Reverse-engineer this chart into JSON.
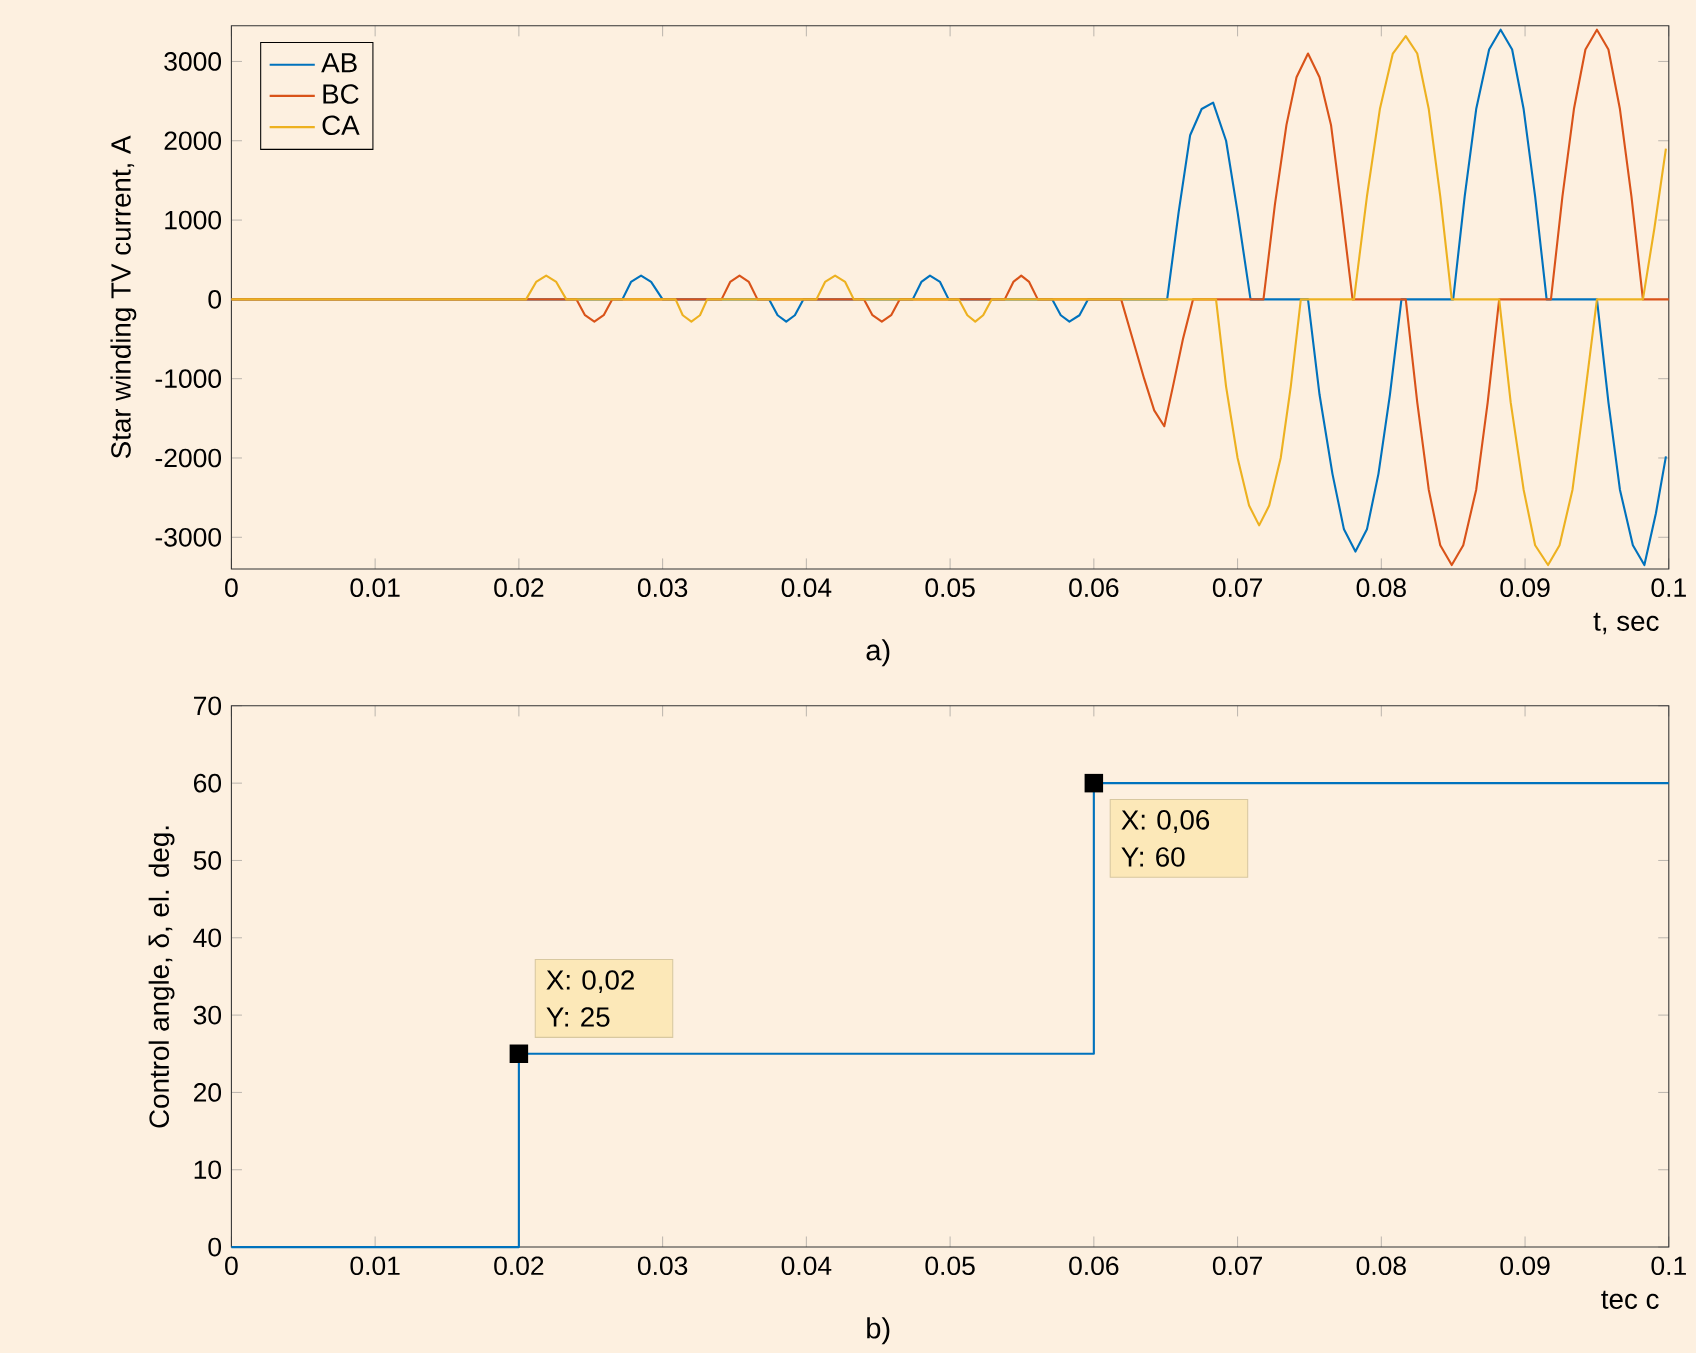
{
  "chart_data": [
    {
      "type": "line",
      "ylabel": "Star winding TV current, A",
      "xlabel": "t, sec",
      "annotations": [
        "a)"
      ],
      "xlim": [
        0,
        0.1
      ],
      "ylim": [
        -3400,
        3450
      ],
      "xticks": [
        0,
        0.01,
        0.02,
        0.03,
        0.04,
        0.05,
        0.06,
        0.07,
        0.08,
        0.09,
        0.1
      ],
      "yticks": [
        -3000,
        -2000,
        -1000,
        0,
        1000,
        2000,
        3000
      ],
      "legend": "top left",
      "series": [
        {
          "name": "AB",
          "color": "#0072bd",
          "x": [
            0,
            0.0272,
            0.0278,
            0.0285,
            0.0292,
            0.03,
            0.0374,
            0.038,
            0.0386,
            0.0392,
            0.0398,
            0.0474,
            0.048,
            0.0486,
            0.0493,
            0.0499,
            0.0571,
            0.0577,
            0.0583,
            0.059,
            0.0596,
            0.0651,
            0.0659,
            0.0667,
            0.0675,
            0.0683,
            0.0692,
            0.07,
            0.0709,
            0.0749,
            0.0757,
            0.0766,
            0.0774,
            0.0782,
            0.079,
            0.0798,
            0.0806,
            0.0814,
            0.085,
            0.0858,
            0.0866,
            0.0875,
            0.0883,
            0.0891,
            0.0899,
            0.0907,
            0.0915,
            0.095,
            0.0958,
            0.0966,
            0.0975,
            0.0983,
            0.0991,
            0.0998
          ],
          "values": [
            0,
            0,
            220,
            300,
            220,
            0,
            0,
            -200,
            -280,
            -200,
            0,
            0,
            220,
            300,
            220,
            0,
            0,
            -200,
            -280,
            -200,
            0,
            0,
            1100,
            2070,
            2400,
            2480,
            2000,
            1100,
            0,
            0,
            -1200,
            -2200,
            -2900,
            -3180,
            -2900,
            -2200,
            -1200,
            0,
            0,
            1300,
            2400,
            3150,
            3400,
            3150,
            2400,
            1300,
            0,
            0,
            -1300,
            -2400,
            -3100,
            -3350,
            -2700,
            -1980
          ]
        },
        {
          "name": "BC",
          "color": "#d95319",
          "x": [
            0,
            0.024,
            0.0246,
            0.02525,
            0.0259,
            0.0265,
            0.0341,
            0.0347,
            0.03535,
            0.036,
            0.0366,
            0.044,
            0.0446,
            0.04525,
            0.0459,
            0.0465,
            0.0538,
            0.0544,
            0.05495,
            0.0555,
            0.0561,
            0.0619,
            0.0627,
            0.0635,
            0.0642,
            0.0649,
            0.0655,
            0.0662,
            0.0669,
            0.0718,
            0.0726,
            0.0734,
            0.0741,
            0.0749,
            0.0757,
            0.0765,
            0.0772,
            0.078,
            0.0817,
            0.0825,
            0.0833,
            0.0841,
            0.0849,
            0.0857,
            0.0866,
            0.0874,
            0.0882,
            0.0918,
            0.0926,
            0.0934,
            0.0942,
            0.095,
            0.0958,
            0.0966,
            0.0974,
            0.0982,
            0.1
          ],
          "values": [
            0,
            0,
            -200,
            -280,
            -200,
            0,
            0,
            220,
            300,
            220,
            0,
            0,
            -200,
            -280,
            -200,
            0,
            0,
            220,
            300,
            220,
            0,
            0,
            -500,
            -1000,
            -1400,
            -1600,
            -1100,
            -500,
            0,
            0,
            1200,
            2200,
            2800,
            3100,
            2800,
            2200,
            1200,
            0,
            0,
            -1300,
            -2400,
            -3100,
            -3350,
            -3100,
            -2400,
            -1300,
            0,
            0,
            1300,
            2400,
            3150,
            3400,
            3150,
            2400,
            1300,
            0,
            0
          ]
        },
        {
          "name": "CA",
          "color": "#edb120",
          "x": [
            0,
            0.0205,
            0.0212,
            0.0219,
            0.0226,
            0.0233,
            0.0309,
            0.0314,
            0.032,
            0.0326,
            0.0331,
            0.0407,
            0.0413,
            0.042,
            0.0427,
            0.0433,
            0.0506,
            0.0512,
            0.05175,
            0.0523,
            0.0529,
            0.0685,
            0.0692,
            0.07,
            0.0708,
            0.0715,
            0.0722,
            0.073,
            0.0737,
            0.0744,
            0.0781,
            0.079,
            0.0799,
            0.0808,
            0.0817,
            0.0825,
            0.0833,
            0.0841,
            0.0849,
            0.0882,
            0.089,
            0.0899,
            0.0907,
            0.0916,
            0.0924,
            0.0933,
            0.0941,
            0.095,
            0.0982,
            0.099,
            0.0998
          ],
          "values": [
            0,
            0,
            220,
            300,
            220,
            0,
            0,
            -200,
            -280,
            -200,
            0,
            0,
            220,
            300,
            220,
            0,
            0,
            -200,
            -280,
            -200,
            0,
            0,
            -1100,
            -2000,
            -2600,
            -2850,
            -2600,
            -2000,
            -1100,
            0,
            0,
            1300,
            2400,
            3100,
            3320,
            3100,
            2400,
            1300,
            0,
            0,
            -1300,
            -2400,
            -3100,
            -3350,
            -3100,
            -2400,
            -1300,
            0,
            0,
            900,
            1900
          ]
        }
      ]
    },
    {
      "type": "step",
      "ylabel": "Control angle, δ, el. deg.",
      "xlabel": "tec c",
      "xlim": [
        0,
        0.1
      ],
      "ylim": [
        0,
        70
      ],
      "xticks": [
        0,
        0.01,
        0.02,
        0.03,
        0.04,
        0.05,
        0.06,
        0.07,
        0.08,
        0.09,
        0.1
      ],
      "yticks": [
        0,
        10,
        20,
        30,
        40,
        50,
        60,
        70
      ],
      "color": "#0072bd",
      "x": [
        0,
        0.02,
        0.06,
        0.1
      ],
      "values": [
        0,
        25,
        60,
        60
      ],
      "annotations": [
        {
          "text": "X: 0,02 Y: 25",
          "x": 0.02,
          "y": 25
        },
        {
          "text": "X: 0,06 Y: 60",
          "x": 0.06,
          "y": 60
        },
        "b)"
      ]
    }
  ]
}
